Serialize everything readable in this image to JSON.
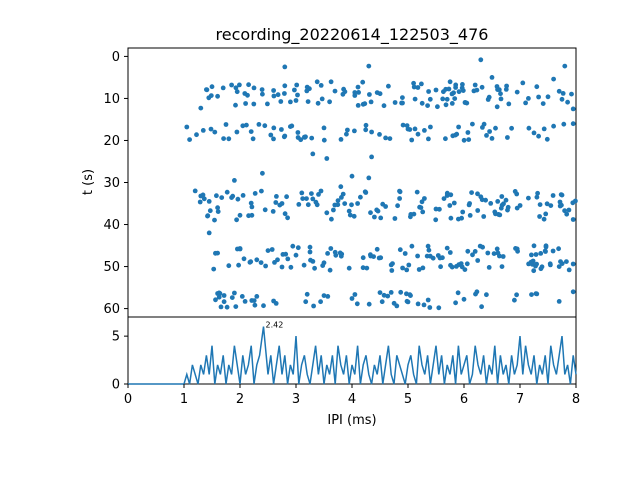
{
  "chart_data": [
    {
      "type": "scatter",
      "title": "recording_20220614_122503_476",
      "ylabel": "t (s)",
      "xlim": [
        0,
        8
      ],
      "ylim": [
        62,
        -2
      ],
      "yticks": [
        0,
        10,
        20,
        30,
        40,
        50,
        60
      ],
      "color": "#1f77b4",
      "marker": "circle",
      "bands": [
        {
          "t_range": [
            6,
            12
          ],
          "x_range": [
            1.35,
            7.95
          ],
          "n": 85
        },
        {
          "t_range": [
            16,
            20
          ],
          "x_range": [
            1.05,
            7.95
          ],
          "n": 55
        },
        {
          "t_range": [
            32,
            39
          ],
          "x_range": [
            1.25,
            7.99
          ],
          "n": 110
        },
        {
          "t_range": [
            45,
            51
          ],
          "x_range": [
            1.5,
            7.95
          ],
          "n": 100
        },
        {
          "t_range": [
            56,
            60
          ],
          "x_range": [
            1.55,
            7.95
          ],
          "n": 45
        }
      ],
      "points": [
        [
          6.3,
          0.8
        ],
        [
          1.05,
          16.8
        ],
        [
          1.1,
          19.8
        ],
        [
          1.3,
          12.3
        ],
        [
          1.2,
          32.0
        ],
        [
          1.42,
          38.0
        ],
        [
          1.45,
          42.0
        ],
        [
          1.8,
          19.6
        ],
        [
          1.9,
          29.5
        ],
        [
          2.05,
          16.5
        ],
        [
          2.4,
          27.8
        ],
        [
          2.8,
          2.5
        ],
        [
          3.3,
          23.2
        ],
        [
          3.55,
          24.3
        ],
        [
          3.8,
          31.0
        ],
        [
          4.0,
          28.5
        ],
        [
          4.3,
          2.3
        ],
        [
          4.3,
          28.9
        ],
        [
          4.35,
          23.9
        ],
        [
          1.53,
          50.6
        ],
        [
          1.6,
          56.4
        ],
        [
          1.66,
          59.6
        ],
        [
          2.3,
          57.1
        ],
        [
          2.42,
          59.3
        ],
        [
          3.2,
          56.6
        ],
        [
          5.55,
          59.8
        ],
        [
          6.0,
          57.8
        ],
        [
          6.5,
          5.0
        ],
        [
          7.05,
          6.3
        ],
        [
          7.6,
          5.4
        ],
        [
          7.8,
          2.3
        ],
        [
          7.95,
          12.5
        ],
        [
          7.95,
          16.0
        ],
        [
          7.99,
          34.4
        ],
        [
          7.95,
          38.8
        ],
        [
          7.95,
          49.4
        ],
        [
          7.95,
          56.0
        ],
        [
          1.4,
          7.9
        ],
        [
          1.5,
          7.2
        ],
        [
          1.6,
          9.5
        ],
        [
          1.7,
          7.5
        ],
        [
          1.85,
          6.8
        ],
        [
          1.95,
          8.4
        ],
        [
          2.1,
          11.2
        ],
        [
          2.25,
          7.5
        ],
        [
          2.4,
          9.0
        ],
        [
          2.6,
          8.1
        ],
        [
          2.8,
          7.0
        ],
        [
          3.0,
          10.5
        ],
        [
          3.2,
          7.3
        ],
        [
          3.45,
          6.9
        ],
        [
          3.6,
          10.8
        ],
        [
          3.85,
          7.8
        ],
        [
          4.05,
          9.3
        ],
        [
          4.2,
          11.4
        ],
        [
          4.45,
          8.6
        ],
        [
          4.65,
          7.1
        ],
        [
          4.9,
          9.8
        ],
        [
          5.1,
          6.4
        ],
        [
          5.35,
          11.7
        ],
        [
          5.5,
          8.0
        ],
        [
          5.7,
          10.2
        ],
        [
          5.85,
          7.4
        ],
        [
          6.05,
          11.1
        ],
        [
          6.2,
          6.8
        ],
        [
          6.45,
          9.7
        ],
        [
          6.6,
          7.9
        ],
        [
          6.8,
          11.3
        ],
        [
          6.95,
          8.5
        ],
        [
          7.15,
          10.0
        ],
        [
          7.3,
          7.2
        ],
        [
          7.5,
          9.6
        ],
        [
          7.7,
          8.3
        ],
        [
          7.85,
          10.9
        ],
        [
          1.55,
          18.0
        ],
        [
          1.75,
          16.2
        ],
        [
          2.2,
          17.9
        ],
        [
          2.55,
          18.7
        ],
        [
          2.9,
          16.7
        ],
        [
          3.15,
          19.2
        ],
        [
          3.5,
          17.0
        ],
        [
          3.9,
          18.5
        ],
        [
          4.25,
          16.4
        ],
        [
          4.6,
          19.4
        ],
        [
          5.0,
          17.3
        ],
        [
          5.4,
          16.8
        ],
        [
          5.8,
          18.9
        ],
        [
          6.15,
          16.1
        ],
        [
          6.5,
          19.5
        ],
        [
          6.85,
          17.1
        ],
        [
          7.25,
          18.2
        ],
        [
          7.6,
          16.6
        ],
        [
          1.3,
          33.2
        ],
        [
          1.45,
          34.5
        ],
        [
          1.6,
          36.0
        ],
        [
          1.85,
          33.6
        ],
        [
          2.0,
          37.8
        ],
        [
          2.2,
          34.9
        ],
        [
          2.45,
          36.5
        ],
        [
          2.65,
          33.3
        ],
        [
          2.85,
          38.4
        ],
        [
          3.05,
          35.2
        ],
        [
          3.3,
          33.9
        ],
        [
          3.55,
          37.2
        ],
        [
          3.75,
          34.3
        ],
        [
          3.95,
          36.8
        ],
        [
          4.15,
          33.5
        ],
        [
          4.4,
          38.2
        ],
        [
          4.6,
          35.7
        ],
        [
          4.85,
          33.8
        ],
        [
          5.05,
          37.6
        ],
        [
          5.25,
          34.6
        ],
        [
          5.5,
          36.3
        ],
        [
          5.7,
          33.1
        ],
        [
          5.9,
          38.7
        ],
        [
          6.1,
          35.0
        ],
        [
          6.3,
          33.4
        ],
        [
          6.55,
          37.0
        ],
        [
          6.75,
          34.2
        ],
        [
          6.95,
          36.1
        ],
        [
          7.15,
          33.7
        ],
        [
          7.35,
          38.1
        ],
        [
          7.55,
          35.5
        ],
        [
          7.75,
          33.0
        ],
        [
          1.6,
          46.8
        ],
        [
          1.8,
          49.8
        ],
        [
          2.0,
          45.7
        ],
        [
          2.3,
          48.4
        ],
        [
          2.5,
          46.2
        ],
        [
          2.75,
          50.1
        ],
        [
          3.0,
          47.3
        ],
        [
          3.25,
          45.4
        ],
        [
          3.5,
          49.1
        ],
        [
          3.7,
          46.6
        ],
        [
          3.95,
          50.4
        ],
        [
          4.2,
          47.9
        ],
        [
          4.45,
          45.9
        ],
        [
          4.7,
          49.6
        ],
        [
          4.95,
          46.9
        ],
        [
          5.2,
          50.7
        ],
        [
          5.45,
          48.0
        ],
        [
          5.7,
          45.6
        ],
        [
          5.95,
          49.3
        ],
        [
          6.2,
          46.4
        ],
        [
          6.45,
          50.2
        ],
        [
          6.7,
          47.6
        ],
        [
          6.95,
          45.8
        ],
        [
          7.2,
          49.0
        ],
        [
          7.45,
          46.3
        ],
        [
          7.7,
          50.0
        ],
        [
          1.9,
          56.3
        ],
        [
          2.6,
          58.2
        ],
        [
          3.5,
          56.9
        ],
        [
          4.0,
          57.6
        ],
        [
          4.5,
          56.2
        ],
        [
          5.0,
          58.4
        ],
        [
          6.4,
          56.7
        ],
        [
          6.9,
          58.0
        ],
        [
          7.3,
          56.5
        ],
        [
          7.7,
          58.3
        ]
      ]
    },
    {
      "type": "line",
      "xlabel": "IPI (ms)",
      "xlim": [
        0,
        8
      ],
      "ylim": [
        0,
        7
      ],
      "xticks": [
        0,
        1,
        2,
        3,
        4,
        5,
        6,
        7,
        8
      ],
      "yticks": [
        0,
        5
      ],
      "color": "#1f77b4",
      "annotation": {
        "text": "2.42",
        "x": 2.42,
        "y": 6.0
      },
      "x": [
        0,
        1.0,
        1.05,
        1.1,
        1.15,
        1.2,
        1.25,
        1.3,
        1.35,
        1.4,
        1.45,
        1.5,
        1.55,
        1.6,
        1.65,
        1.7,
        1.75,
        1.8,
        1.85,
        1.9,
        1.95,
        2.0,
        2.05,
        2.1,
        2.15,
        2.2,
        2.25,
        2.3,
        2.35,
        2.42,
        2.5,
        2.55,
        2.6,
        2.65,
        2.7,
        2.75,
        2.8,
        2.85,
        2.9,
        2.95,
        3.0,
        3.05,
        3.1,
        3.15,
        3.2,
        3.25,
        3.3,
        3.35,
        3.4,
        3.45,
        3.5,
        3.55,
        3.6,
        3.65,
        3.7,
        3.75,
        3.8,
        3.85,
        3.9,
        3.95,
        4.0,
        4.05,
        4.1,
        4.15,
        4.2,
        4.25,
        4.3,
        4.35,
        4.4,
        4.45,
        4.5,
        4.55,
        4.6,
        4.65,
        4.7,
        4.75,
        4.8,
        4.85,
        4.9,
        4.95,
        5.0,
        5.05,
        5.1,
        5.15,
        5.2,
        5.25,
        5.3,
        5.35,
        5.4,
        5.45,
        5.5,
        5.55,
        5.6,
        5.65,
        5.7,
        5.75,
        5.8,
        5.85,
        5.9,
        5.95,
        6.0,
        6.05,
        6.1,
        6.15,
        6.2,
        6.25,
        6.3,
        6.35,
        6.4,
        6.45,
        6.5,
        6.55,
        6.6,
        6.65,
        6.7,
        6.75,
        6.8,
        6.85,
        6.9,
        6.95,
        7.0,
        7.05,
        7.1,
        7.15,
        7.2,
        7.25,
        7.3,
        7.35,
        7.4,
        7.45,
        7.5,
        7.55,
        7.6,
        7.65,
        7.7,
        7.75,
        7.8,
        7.85,
        7.9,
        7.95,
        8.0
      ],
      "y": [
        0,
        0,
        1,
        0,
        2,
        1,
        0,
        2,
        1,
        3,
        1,
        4,
        0,
        2,
        1,
        3,
        0,
        2,
        1,
        4,
        2,
        0,
        3,
        1,
        2,
        4,
        0,
        2,
        3,
        6,
        1,
        3,
        0,
        2,
        4,
        1,
        3,
        0,
        2,
        1,
        5,
        0,
        2,
        3,
        1,
        0,
        2,
        4,
        1,
        3,
        0,
        2,
        1,
        3,
        0,
        4,
        2,
        1,
        3,
        0,
        2,
        1,
        4,
        0,
        2,
        3,
        1,
        0,
        2,
        1,
        3,
        0,
        2,
        4,
        1,
        0,
        3,
        2,
        1,
        0,
        2,
        3,
        1,
        0,
        4,
        2,
        1,
        3,
        0,
        2,
        4,
        1,
        3,
        0,
        2,
        1,
        3,
        0,
        4,
        1,
        2,
        3,
        0,
        1,
        4,
        2,
        1,
        3,
        0,
        2,
        1,
        4,
        0,
        3,
        1,
        2,
        0,
        3,
        1,
        2,
        5,
        1,
        4,
        2,
        1,
        3,
        0,
        2,
        1,
        3,
        0,
        4,
        2,
        1,
        3,
        5,
        1,
        2,
        0,
        3,
        1
      ]
    }
  ]
}
